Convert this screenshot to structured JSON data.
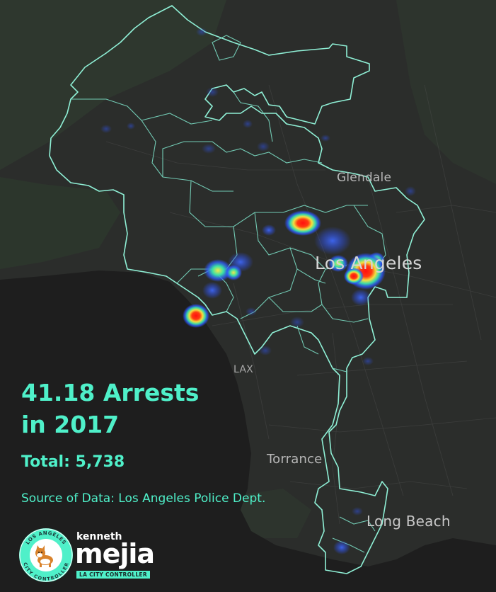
{
  "map": {
    "place_labels": {
      "glendale": "Glendale",
      "los_angeles": "Los Angeles",
      "lax": "LAX",
      "torrance": "Torrance",
      "long_beach": "Long Beach"
    },
    "colors": {
      "background_land": "#2b2d2b",
      "water": "#1f1f1f",
      "boundary": "#8ff0d6",
      "heat_low": "#2f5bff",
      "heat_mid": "#36e0a0",
      "heat_high": "#ff1a1a"
    }
  },
  "headline": {
    "line1": "41.18 Arrests",
    "line2": "in 2017"
  },
  "total_text": "Total: 5,738",
  "source_text": "Source of Data: Los Angeles Police Dept.",
  "logo": {
    "seal_top_text": "LOS ANGELES",
    "seal_bottom_text": "CITY CONTROLLER",
    "first_name": "kenneth",
    "last_name": "mejia",
    "role": "LA CITY CONTROLLER",
    "accent": "#4ff0c9"
  }
}
